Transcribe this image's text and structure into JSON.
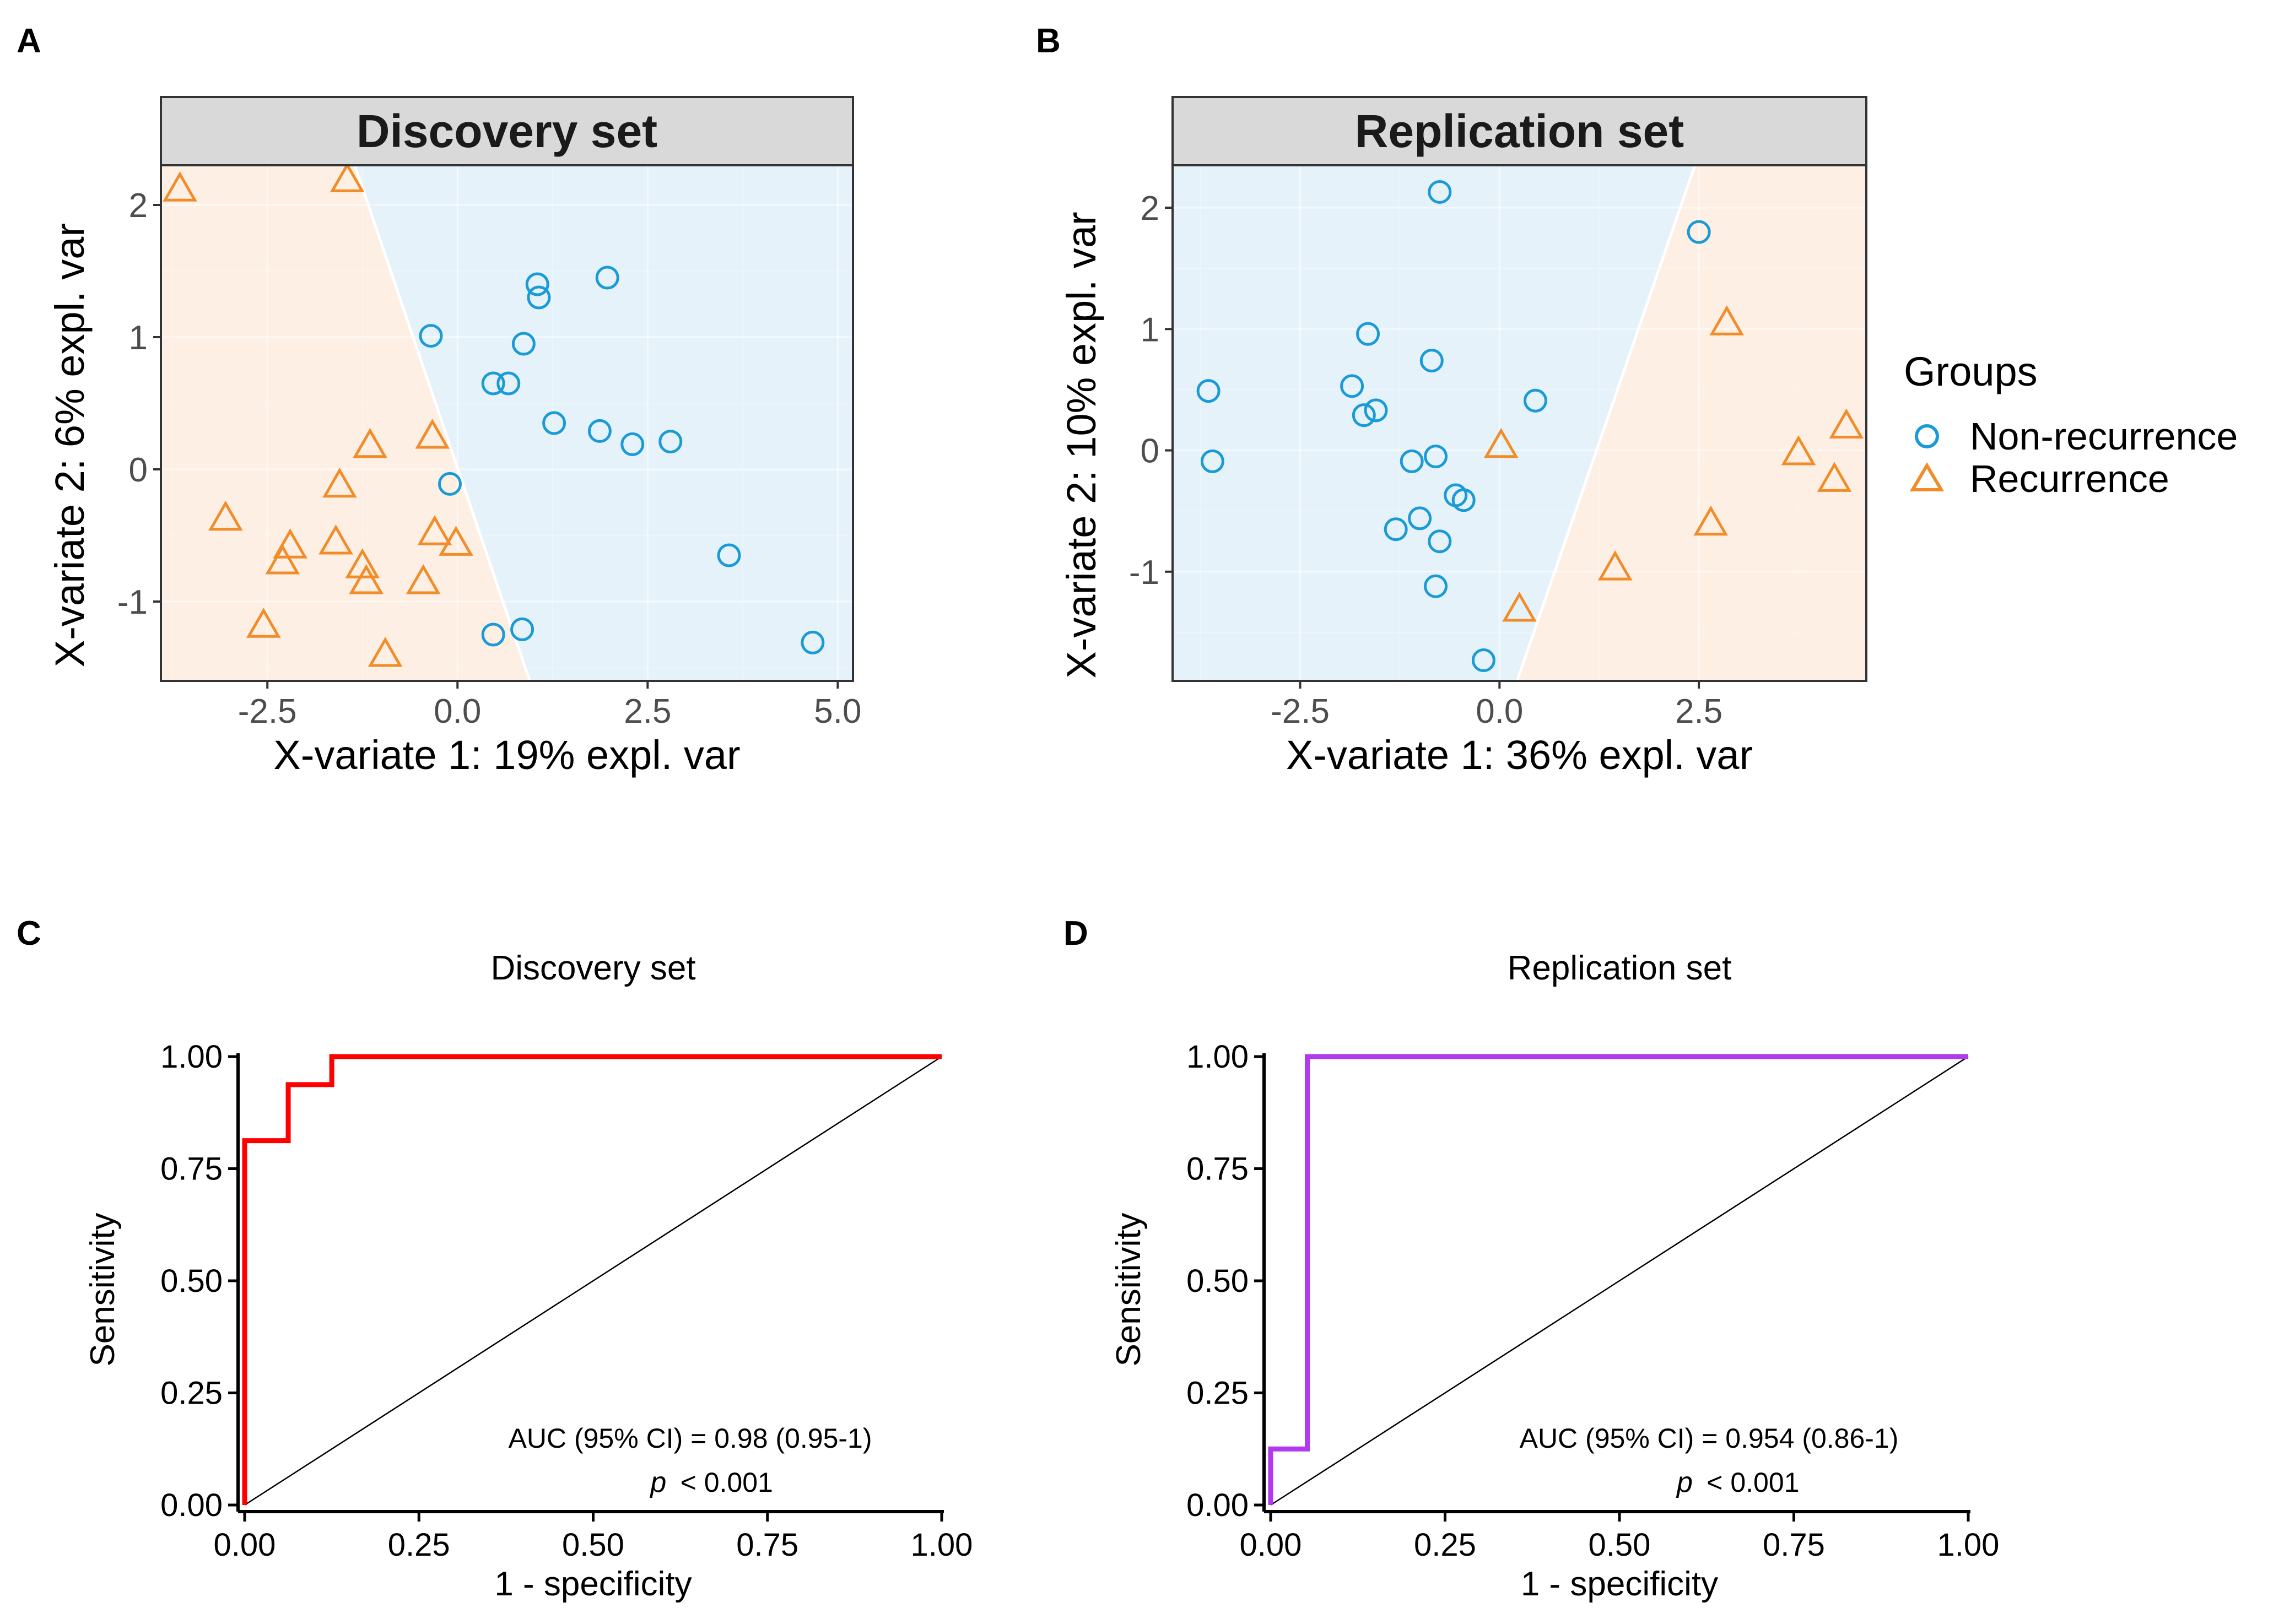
{
  "colors": {
    "non_recurrence": "#1A9BD7",
    "recurrence": "#F28C28",
    "region_non_recurrence": "#E5F2FA",
    "region_recurrence": "#FDEFE4",
    "strip_bg": "#D9D9D9",
    "roc_discovery": "#FF0000",
    "roc_replication": "#B23AEE"
  },
  "panel_letters": {
    "a": "A",
    "b": "B",
    "c": "C",
    "d": "D"
  },
  "legend": {
    "title": "Groups",
    "non_recurrence": "Non-recurrence",
    "recurrence": "Recurrence"
  },
  "chart_data": [
    {
      "id": "A",
      "type": "scatter",
      "title": "Discovery set",
      "xlabel": "X-variate 1: 19% expl. var",
      "ylabel": "X-variate 2: 6% expl. var",
      "xlim": [
        -3.9,
        5.2
      ],
      "ylim": [
        -1.6,
        2.3
      ],
      "xticks": [
        -2.5,
        0.0,
        2.5,
        5.0
      ],
      "xtick_labels": [
        "-2.5",
        "0.0",
        "2.5",
        "5.0"
      ],
      "yticks": [
        -1,
        0,
        1,
        2
      ],
      "ytick_labels": [
        "-1",
        "0",
        "1",
        "2"
      ],
      "boundary": [
        [
          -1.35,
          2.3
        ],
        [
          0.95,
          -1.6
        ]
      ],
      "recurrence_side": "left",
      "series": [
        {
          "name": "Non-recurrence",
          "marker": "circle",
          "points": [
            [
              -0.35,
              1.01
            ],
            [
              1.05,
              1.4
            ],
            [
              1.07,
              1.3
            ],
            [
              1.97,
              1.45
            ],
            [
              0.87,
              0.95
            ],
            [
              0.47,
              0.65
            ],
            [
              0.67,
              0.65
            ],
            [
              1.27,
              0.35
            ],
            [
              1.87,
              0.29
            ],
            [
              2.3,
              0.19
            ],
            [
              2.8,
              0.21
            ],
            [
              -0.1,
              -0.11
            ],
            [
              3.57,
              -0.65
            ],
            [
              0.47,
              -1.25
            ],
            [
              0.85,
              -1.21
            ],
            [
              4.67,
              -1.31
            ]
          ]
        },
        {
          "name": "Recurrence",
          "marker": "triangle",
          "points": [
            [
              -3.65,
              2.12
            ],
            [
              -1.45,
              2.19
            ],
            [
              -1.15,
              0.18
            ],
            [
              -0.33,
              0.25
            ],
            [
              -1.55,
              -0.12
            ],
            [
              -3.05,
              -0.37
            ],
            [
              -2.2,
              -0.58
            ],
            [
              -2.3,
              -0.7
            ],
            [
              -1.6,
              -0.55
            ],
            [
              -1.25,
              -0.73
            ],
            [
              -1.2,
              -0.85
            ],
            [
              -0.3,
              -0.48
            ],
            [
              -0.02,
              -0.56
            ],
            [
              -0.45,
              -0.85
            ],
            [
              -2.55,
              -1.18
            ],
            [
              -0.95,
              -1.4
            ]
          ]
        }
      ]
    },
    {
      "id": "B",
      "type": "scatter",
      "title": "Replication set",
      "xlabel": "X-variate 1: 36% expl. var",
      "ylabel": "X-variate 2: 10% expl. var",
      "xlim": [
        -4.1,
        4.6
      ],
      "ylim": [
        -1.9,
        2.35
      ],
      "xticks": [
        -2.5,
        0.0,
        2.5
      ],
      "xtick_labels": [
        "-2.5",
        "0.0",
        "2.5"
      ],
      "yticks": [
        -1,
        0,
        1,
        2
      ],
      "ytick_labels": [
        "-1",
        "0",
        "1",
        "2"
      ],
      "boundary": [
        [
          2.45,
          2.35
        ],
        [
          0.22,
          -1.9
        ]
      ],
      "recurrence_side": "right",
      "series": [
        {
          "name": "Non-recurrence",
          "marker": "circle",
          "points": [
            [
              -0.75,
              2.13
            ],
            [
              2.5,
              1.8
            ],
            [
              -1.65,
              0.96
            ],
            [
              -0.85,
              0.74
            ],
            [
              -3.65,
              0.49
            ],
            [
              -1.85,
              0.53
            ],
            [
              -1.55,
              0.33
            ],
            [
              -1.7,
              0.29
            ],
            [
              0.45,
              0.41
            ],
            [
              -3.6,
              -0.09
            ],
            [
              -1.1,
              -0.09
            ],
            [
              -0.8,
              -0.05
            ],
            [
              -0.55,
              -0.37
            ],
            [
              -0.45,
              -0.41
            ],
            [
              -1.0,
              -0.56
            ],
            [
              -1.3,
              -0.65
            ],
            [
              -0.75,
              -0.75
            ],
            [
              -0.8,
              -1.12
            ],
            [
              -0.2,
              -1.73
            ]
          ]
        },
        {
          "name": "Recurrence",
          "marker": "triangle",
          "points": [
            [
              2.85,
              1.05
            ],
            [
              4.35,
              0.2
            ],
            [
              3.75,
              -0.02
            ],
            [
              4.2,
              -0.24
            ],
            [
              0.02,
              0.04
            ],
            [
              2.65,
              -0.6
            ],
            [
              1.45,
              -0.97
            ],
            [
              0.25,
              -1.31
            ]
          ]
        }
      ]
    },
    {
      "id": "C",
      "type": "line",
      "title": "Discovery set",
      "xlabel": "1 - specificity",
      "ylabel": "Sensitivity",
      "xlim": [
        0,
        1
      ],
      "ylim": [
        0,
        1
      ],
      "xticks": [
        0,
        0.25,
        0.5,
        0.75,
        1
      ],
      "xtick_labels": [
        "0.00",
        "0.25",
        "0.50",
        "0.75",
        "1.00"
      ],
      "yticks": [
        0,
        0.25,
        0.5,
        0.75,
        1
      ],
      "ytick_labels": [
        "0.00",
        "0.25",
        "0.50",
        "0.75",
        "1.00"
      ],
      "series": [
        {
          "name": "ROC",
          "points": [
            [
              0,
              0
            ],
            [
              0,
              0.8125
            ],
            [
              0.0625,
              0.8125
            ],
            [
              0.0625,
              0.9375
            ],
            [
              0.125,
              0.9375
            ],
            [
              0.125,
              1
            ],
            [
              1,
              1
            ]
          ]
        },
        {
          "name": "Reference",
          "points": [
            [
              0,
              0
            ],
            [
              1,
              1
            ]
          ]
        }
      ],
      "annotation": "AUC (95% CI) = 0.98 (0.95-1)",
      "p_symbol": "p",
      "p_value": "< 0.001"
    },
    {
      "id": "D",
      "type": "line",
      "title": "Replication set",
      "xlabel": "1 - specificity",
      "ylabel": "Sensitivity",
      "xlim": [
        0,
        1
      ],
      "ylim": [
        0,
        1
      ],
      "xticks": [
        0,
        0.25,
        0.5,
        0.75,
        1
      ],
      "xtick_labels": [
        "0.00",
        "0.25",
        "0.50",
        "0.75",
        "1.00"
      ],
      "yticks": [
        0,
        0.25,
        0.5,
        0.75,
        1
      ],
      "ytick_labels": [
        "0.00",
        "0.25",
        "0.50",
        "0.75",
        "1.00"
      ],
      "series": [
        {
          "name": "ROC",
          "points": [
            [
              0,
              0
            ],
            [
              0,
              0.125
            ],
            [
              0.0526,
              0.125
            ],
            [
              0.0526,
              1
            ],
            [
              1,
              1
            ]
          ]
        },
        {
          "name": "Reference",
          "points": [
            [
              0,
              0
            ],
            [
              1,
              1
            ]
          ]
        }
      ],
      "annotation": "AUC (95% CI) = 0.954 (0.86-1)",
      "p_symbol": "p",
      "p_value": "< 0.001"
    }
  ]
}
